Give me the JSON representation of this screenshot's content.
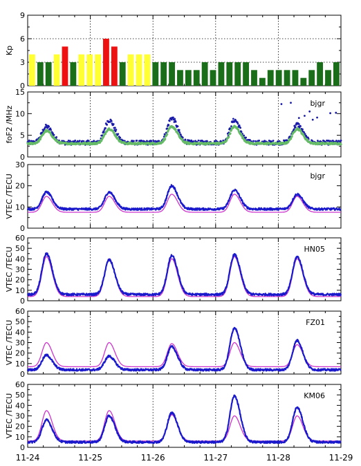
{
  "chart_data": {
    "type": "multi-panel",
    "x_ticks": [
      "11-24",
      "11-25",
      "11-26",
      "11-27",
      "11-28",
      "11-29"
    ],
    "x_range_days": [
      0,
      5
    ],
    "colors": {
      "kp_quiet": "#1a6e1a",
      "kp_moderate": "#ffff33",
      "kp_storm": "#ee1111",
      "fof2_obs": "#1a1aaa",
      "fof2_model": "#66bb66",
      "vtec_obs": "#1a1acc",
      "vtec_model": "#cc33cc"
    },
    "panels": [
      {
        "id": "kp",
        "type": "bar",
        "ylabel": "Kp",
        "label": "",
        "ylim": [
          0,
          9
        ],
        "ticks": [
          0,
          3,
          6,
          9
        ],
        "dotted_y": [
          3,
          6
        ],
        "bin_hours": 3,
        "values": [
          4,
          3,
          3,
          4,
          5,
          3,
          4,
          4,
          4,
          6,
          5,
          3,
          4,
          4,
          4,
          3,
          3,
          3,
          2,
          2,
          2,
          3,
          2,
          3,
          3,
          3,
          3,
          2,
          1,
          2,
          2,
          2,
          2,
          1,
          2,
          3,
          2,
          3
        ]
      },
      {
        "id": "fof2",
        "type": "scatter",
        "ylabel": "foF2 /MHz",
        "label": "bjgr",
        "ylim": [
          0,
          15
        ],
        "ticks": [
          0,
          5,
          10,
          15
        ],
        "dotted_y": [],
        "outliers": [
          [
            4.05,
            12.2
          ],
          [
            4.2,
            12.5
          ],
          [
            4.33,
            9.0
          ],
          [
            4.42,
            9.5
          ],
          [
            4.5,
            10.5
          ],
          [
            4.55,
            8.6
          ],
          [
            4.62,
            9.1
          ],
          [
            4.83,
            10.1
          ],
          [
            4.92,
            10.2
          ]
        ],
        "series": [
          {
            "name": "",
            "role": "obs",
            "peaks": [
              7,
              8.5,
              9,
              8.5,
              7.5
            ],
            "night": 3.3
          },
          {
            "name": "",
            "role": "model",
            "peaks": [
              6,
              6.5,
              7,
              7,
              6.5
            ],
            "night": 3.1
          }
        ]
      },
      {
        "id": "vtec-bjgr",
        "type": "line",
        "ylabel": "VTEC /TECU",
        "label": "bjgr",
        "ylim": [
          0,
          30
        ],
        "ticks": [
          0,
          10,
          20,
          30
        ],
        "dotted_y": [],
        "series": [
          {
            "name": "",
            "role": "obs",
            "peaks": [
              17,
              17,
              20,
              18,
              16
            ],
            "night": 9
          },
          {
            "name": "",
            "role": "model",
            "peaks": [
              15,
              15,
              16,
              16,
              15
            ],
            "night": 7.5
          }
        ]
      },
      {
        "id": "vtec-hn05",
        "type": "line",
        "ylabel": "VTEC /TECU",
        "label": "HN05",
        "ylim": [
          0,
          60
        ],
        "ticks": [
          0,
          10,
          20,
          30,
          40,
          50,
          60
        ],
        "dotted_y": [],
        "series": [
          {
            "name": "",
            "role": "obs",
            "peaks": [
              45,
              39,
              43,
              44,
              42
            ],
            "night": 6
          },
          {
            "name": "",
            "role": "model",
            "peaks": [
              42,
              40,
              40,
              42,
              40
            ],
            "night": 4
          }
        ]
      },
      {
        "id": "vtec-fz01",
        "type": "line",
        "ylabel": "VTEC /TECU",
        "label": "FZ01",
        "ylim": [
          0,
          60
        ],
        "ticks": [
          0,
          10,
          20,
          30,
          40,
          50,
          60
        ],
        "dotted_y": [],
        "series": [
          {
            "name": "",
            "role": "obs",
            "peaks": [
              18,
              17,
              26,
              44,
              32
            ],
            "night": 4
          },
          {
            "name": "",
            "role": "model",
            "peaks": [
              30,
              30,
              29,
              30,
              28
            ],
            "night": 7
          }
        ]
      },
      {
        "id": "vtec-km06",
        "type": "line",
        "ylabel": "VTEC /TECU",
        "label": "KM06",
        "ylim": [
          0,
          60
        ],
        "ticks": [
          0,
          10,
          20,
          30,
          40,
          50,
          60
        ],
        "dotted_y": [],
        "series": [
          {
            "name": "",
            "role": "obs",
            "peaks": [
              26,
              30,
              33,
              49,
              38
            ],
            "night": 5
          },
          {
            "name": "",
            "role": "model",
            "peaks": [
              35,
              35,
              31,
              30,
              30
            ],
            "night": 6
          }
        ]
      }
    ]
  }
}
